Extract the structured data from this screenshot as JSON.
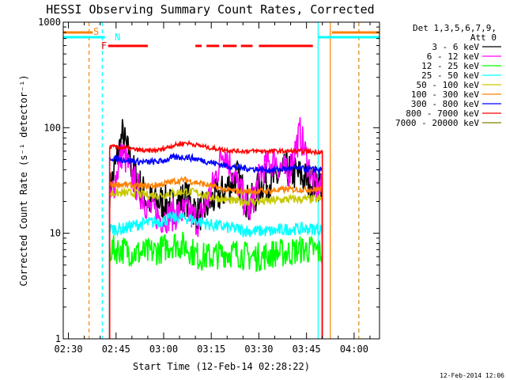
{
  "chart_data": {
    "type": "line",
    "title": "HESSI Observing Summary Count Rates, Corrected",
    "xlabel": "Start Time (12-Feb-14 02:28:22)",
    "ylabel": "Corrected Count Rate (s⁻¹ detector⁻¹)",
    "y_scale": "log",
    "ylim": [
      1,
      1000
    ],
    "xlim": [
      "02:28:22",
      "04:08:00"
    ],
    "x_ticks": [
      "02:30",
      "02:45",
      "03:00",
      "03:15",
      "03:30",
      "03:45",
      "04:00"
    ],
    "y_ticks": [
      "1",
      "10",
      "100",
      "1000"
    ],
    "legend_header": [
      "Det 1,3,5,6,7,9,",
      "Att 0"
    ],
    "legend_position": "right",
    "markers": [
      {
        "label": "S",
        "color": "#ff8000"
      },
      {
        "label": "N",
        "color": "#00ffff"
      },
      {
        "label": "F",
        "color": "#ff0000"
      }
    ],
    "vertical_lines": [
      {
        "time": "02:36:30",
        "color": "#ff8000",
        "style": "dashed"
      },
      {
        "time": "02:40:40",
        "color": "#00ffff",
        "style": "dashed"
      },
      {
        "time": "03:48:40",
        "color": "#00ffff",
        "style": "solid"
      },
      {
        "time": "03:52:30",
        "color": "#ff8000",
        "style": "solid"
      },
      {
        "time": "04:01:30",
        "color": "#00ffff",
        "style": "dashed"
      },
      {
        "time": "04:01:30",
        "color": "#ff8000",
        "style": "dashed"
      }
    ],
    "flare_intervals": [
      [
        "02:42:30",
        "02:55:00"
      ],
      [
        "03:10:00",
        "03:12:00"
      ],
      [
        "03:13:30",
        "03:17:30"
      ],
      [
        "03:18:40",
        "03:23:00"
      ],
      [
        "03:24:20",
        "03:28:00"
      ],
      [
        "03:30:00",
        "03:47:00"
      ]
    ],
    "series": [
      {
        "name": "3 - 6 keV",
        "color": "#000000",
        "times": [
          "02:43",
          "02:47",
          "02:51",
          "02:55",
          "02:59",
          "03:03",
          "03:07",
          "03:11",
          "03:15",
          "03:19",
          "03:23",
          "03:27",
          "03:31",
          "03:35",
          "03:39",
          "03:43",
          "03:47",
          "03:50"
        ],
        "values": [
          25,
          85,
          35,
          20,
          20,
          18,
          22,
          15,
          20,
          25,
          35,
          18,
          30,
          32,
          40,
          35,
          30,
          30
        ]
      },
      {
        "name": "6 - 12 keV",
        "color": "#ff00ff",
        "times": [
          "02:43",
          "02:47",
          "02:51",
          "02:55",
          "02:59",
          "03:03",
          "03:07",
          "03:11",
          "03:15",
          "03:19",
          "03:23",
          "03:27",
          "03:31",
          "03:35",
          "03:39",
          "03:43",
          "03:47",
          "03:50"
        ],
        "values": [
          20,
          60,
          30,
          18,
          14,
          15,
          16,
          13,
          25,
          65,
          30,
          16,
          40,
          50,
          35,
          90,
          30,
          25
        ]
      },
      {
        "name": "12 - 25 keV",
        "color": "#00ff00",
        "times": [
          "02:43",
          "02:47",
          "02:51",
          "02:55",
          "02:59",
          "03:03",
          "03:07",
          "03:11",
          "03:15",
          "03:19",
          "03:23",
          "03:27",
          "03:31",
          "03:35",
          "03:39",
          "03:43",
          "03:47",
          "03:50"
        ],
        "values": [
          7,
          7,
          6.5,
          6.5,
          7,
          8,
          7.5,
          6,
          6,
          6.5,
          6.5,
          6,
          6,
          6.5,
          6.5,
          7,
          7,
          6.5
        ]
      },
      {
        "name": "25 - 50 keV",
        "color": "#00ffff",
        "times": [
          "02:43",
          "02:47",
          "02:51",
          "02:55",
          "02:59",
          "03:03",
          "03:07",
          "03:11",
          "03:15",
          "03:19",
          "03:23",
          "03:27",
          "03:31",
          "03:35",
          "03:39",
          "03:43",
          "03:47",
          "03:50"
        ],
        "values": [
          11,
          11,
          12,
          12.5,
          13,
          14,
          14,
          13,
          12,
          11.5,
          11,
          10.5,
          10.5,
          10.5,
          11,
          11,
          11,
          11
        ]
      },
      {
        "name": "50 - 100 keV",
        "color": "#c8c800",
        "times": [
          "02:43",
          "02:47",
          "02:51",
          "02:55",
          "02:59",
          "03:03",
          "03:07",
          "03:11",
          "03:15",
          "03:19",
          "03:23",
          "03:27",
          "03:31",
          "03:35",
          "03:39",
          "03:43",
          "03:47",
          "03:50"
        ],
        "values": [
          24,
          24,
          24,
          23,
          23,
          24,
          25,
          24,
          22,
          21,
          20,
          20,
          20,
          20.5,
          21,
          21,
          21,
          21
        ]
      },
      {
        "name": "100 - 300 keV",
        "color": "#ff8000",
        "times": [
          "02:43",
          "02:47",
          "02:51",
          "02:55",
          "02:59",
          "03:03",
          "03:07",
          "03:11",
          "03:15",
          "03:19",
          "03:23",
          "03:27",
          "03:31",
          "03:35",
          "03:39",
          "03:43",
          "03:47",
          "03:50"
        ],
        "values": [
          29,
          29,
          28,
          28,
          29,
          31,
          32,
          30,
          28,
          26,
          25,
          25,
          25,
          25.5,
          26,
          26,
          26,
          26
        ]
      },
      {
        "name": "300 - 800 keV",
        "color": "#0000ff",
        "times": [
          "02:43",
          "02:47",
          "02:51",
          "02:55",
          "02:59",
          "03:03",
          "03:07",
          "03:11",
          "03:15",
          "03:19",
          "03:23",
          "03:27",
          "03:31",
          "03:35",
          "03:39",
          "03:43",
          "03:47",
          "03:50"
        ],
        "values": [
          52,
          50,
          48,
          47,
          48,
          52,
          53,
          50,
          47,
          44,
          42,
          41,
          40,
          40,
          41,
          41,
          40,
          40
        ]
      },
      {
        "name": "800 - 7000 keV",
        "color": "#ff0000",
        "times": [
          "02:43",
          "02:47",
          "02:51",
          "02:55",
          "02:59",
          "03:03",
          "03:07",
          "03:11",
          "03:15",
          "03:19",
          "03:23",
          "03:27",
          "03:31",
          "03:35",
          "03:39",
          "03:43",
          "03:47",
          "03:50"
        ],
        "values": [
          66,
          65,
          62,
          60,
          62,
          68,
          72,
          68,
          64,
          62,
          60,
          60,
          60,
          60,
          60,
          60,
          59,
          59
        ]
      },
      {
        "name": "7000 - 20000 keV",
        "color": "#808000",
        "times": [],
        "values": []
      }
    ],
    "timestamp": "12-Feb-2014 12:06"
  }
}
